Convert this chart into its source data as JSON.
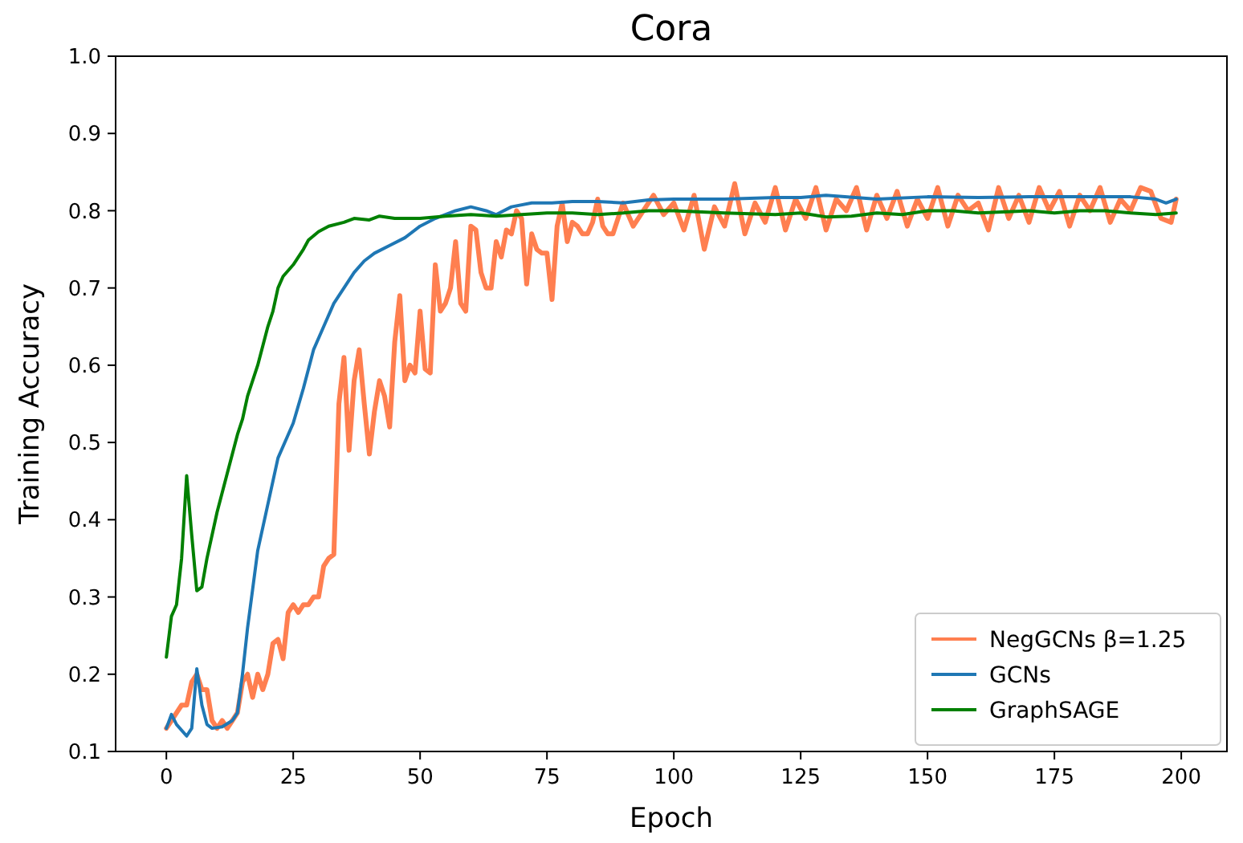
{
  "chart_data": {
    "type": "line",
    "title": "Cora",
    "xlabel": "Epoch",
    "ylabel": "Training Accuracy",
    "xlim": [
      -10,
      209
    ],
    "ylim": [
      0.1,
      1.0
    ],
    "xticks": [
      0,
      25,
      50,
      75,
      100,
      125,
      150,
      175,
      200
    ],
    "yticks": [
      0.1,
      0.2,
      0.3,
      0.4,
      0.5,
      0.6,
      0.7,
      0.8,
      0.9,
      {
        "value": 1,
        "label": "1.0"
      }
    ],
    "legend": "bottom right",
    "grid": false,
    "line_style": "solid",
    "series": [
      {
        "name": "NegGCNs β=1.25",
        "color": "#ff7f50",
        "x": [
          0,
          1,
          2,
          3,
          4,
          5,
          6,
          7,
          8,
          9,
          10,
          11,
          12,
          13,
          14,
          15,
          16,
          17,
          18,
          19,
          20,
          21,
          22,
          23,
          24,
          25,
          26,
          27,
          28,
          29,
          30,
          31,
          32,
          33,
          34,
          35,
          36,
          37,
          38,
          39,
          40,
          41,
          42,
          43,
          44,
          45,
          46,
          47,
          48,
          49,
          50,
          51,
          52,
          53,
          54,
          55,
          56,
          57,
          58,
          59,
          60,
          61,
          62,
          63,
          64,
          65,
          66,
          67,
          68,
          69,
          70,
          71,
          72,
          73,
          74,
          75,
          76,
          77,
          78,
          79,
          80,
          81,
          82,
          83,
          84,
          85,
          86,
          87,
          88,
          89,
          90,
          92,
          94,
          96,
          98,
          100,
          102,
          104,
          106,
          108,
          110,
          112,
          114,
          116,
          118,
          120,
          122,
          124,
          126,
          128,
          130,
          132,
          134,
          136,
          138,
          140,
          142,
          144,
          146,
          148,
          150,
          152,
          154,
          156,
          158,
          160,
          162,
          164,
          166,
          168,
          170,
          172,
          174,
          176,
          178,
          180,
          182,
          184,
          186,
          188,
          190,
          192,
          194,
          196,
          198,
          199
        ],
        "values": [
          0.13,
          0.14,
          0.15,
          0.16,
          0.16,
          0.19,
          0.2,
          0.18,
          0.18,
          0.14,
          0.13,
          0.14,
          0.13,
          0.14,
          0.15,
          0.19,
          0.2,
          0.17,
          0.2,
          0.18,
          0.2,
          0.24,
          0.245,
          0.22,
          0.28,
          0.29,
          0.28,
          0.29,
          0.29,
          0.3,
          0.3,
          0.34,
          0.35,
          0.355,
          0.55,
          0.61,
          0.49,
          0.58,
          0.62,
          0.55,
          0.485,
          0.54,
          0.58,
          0.56,
          0.52,
          0.63,
          0.69,
          0.58,
          0.6,
          0.59,
          0.67,
          0.595,
          0.59,
          0.73,
          0.67,
          0.68,
          0.7,
          0.76,
          0.68,
          0.67,
          0.78,
          0.775,
          0.72,
          0.7,
          0.7,
          0.76,
          0.74,
          0.775,
          0.77,
          0.8,
          0.79,
          0.705,
          0.77,
          0.75,
          0.745,
          0.745,
          0.685,
          0.78,
          0.81,
          0.76,
          0.785,
          0.78,
          0.77,
          0.77,
          0.785,
          0.815,
          0.78,
          0.77,
          0.77,
          0.79,
          0.81,
          0.78,
          0.8,
          0.82,
          0.795,
          0.81,
          0.775,
          0.82,
          0.75,
          0.805,
          0.78,
          0.835,
          0.77,
          0.81,
          0.785,
          0.83,
          0.775,
          0.815,
          0.79,
          0.83,
          0.775,
          0.815,
          0.8,
          0.83,
          0.775,
          0.82,
          0.79,
          0.825,
          0.78,
          0.815,
          0.79,
          0.83,
          0.78,
          0.82,
          0.8,
          0.81,
          0.775,
          0.83,
          0.79,
          0.82,
          0.785,
          0.83,
          0.8,
          0.825,
          0.78,
          0.82,
          0.8,
          0.83,
          0.785,
          0.815,
          0.8,
          0.83,
          0.825,
          0.79,
          0.785,
          0.815
        ]
      },
      {
        "name": "GCNs",
        "color": "#1f77b4",
        "x": [
          0,
          1,
          2,
          4,
          5,
          6,
          7,
          8,
          9,
          11,
          13,
          14,
          15,
          16,
          17,
          18,
          20,
          22,
          24,
          25,
          27,
          29,
          31,
          33,
          35,
          37,
          39,
          41,
          44,
          47,
          50,
          53,
          57,
          60,
          63,
          65,
          68,
          72,
          76,
          80,
          85,
          90,
          95,
          100,
          110,
          120,
          125,
          130,
          140,
          150,
          160,
          170,
          180,
          190,
          195,
          197,
          199
        ],
        "values": [
          0.13,
          0.148,
          0.135,
          0.12,
          0.13,
          0.207,
          0.16,
          0.135,
          0.13,
          0.132,
          0.14,
          0.15,
          0.2,
          0.26,
          0.31,
          0.36,
          0.42,
          0.48,
          0.51,
          0.525,
          0.57,
          0.62,
          0.65,
          0.68,
          0.7,
          0.72,
          0.735,
          0.745,
          0.755,
          0.765,
          0.78,
          0.79,
          0.8,
          0.805,
          0.8,
          0.795,
          0.805,
          0.81,
          0.81,
          0.812,
          0.812,
          0.81,
          0.814,
          0.815,
          0.815,
          0.817,
          0.817,
          0.82,
          0.815,
          0.818,
          0.817,
          0.818,
          0.818,
          0.818,
          0.815,
          0.81,
          0.815
        ]
      },
      {
        "name": "GraphSAGE",
        "color": "#008000",
        "x": [
          0,
          1,
          2,
          3,
          4,
          5,
          6,
          7,
          8,
          10,
          12,
          14,
          15,
          16,
          18,
          20,
          21,
          22,
          23,
          25,
          27,
          28,
          30,
          32,
          35,
          37,
          40,
          42,
          45,
          50,
          55,
          60,
          65,
          70,
          75,
          80,
          85,
          90,
          95,
          100,
          110,
          120,
          125,
          130,
          135,
          140,
          145,
          150,
          155,
          160,
          170,
          175,
          180,
          185,
          190,
          195,
          199
        ],
        "values": [
          0.222,
          0.275,
          0.29,
          0.35,
          0.457,
          0.38,
          0.308,
          0.313,
          0.35,
          0.41,
          0.46,
          0.51,
          0.53,
          0.56,
          0.6,
          0.65,
          0.67,
          0.7,
          0.715,
          0.73,
          0.75,
          0.762,
          0.773,
          0.78,
          0.785,
          0.79,
          0.788,
          0.793,
          0.79,
          0.79,
          0.793,
          0.795,
          0.793,
          0.795,
          0.797,
          0.797,
          0.795,
          0.797,
          0.8,
          0.8,
          0.797,
          0.795,
          0.797,
          0.792,
          0.793,
          0.797,
          0.795,
          0.8,
          0.8,
          0.797,
          0.8,
          0.797,
          0.8,
          0.8,
          0.797,
          0.795,
          0.797
        ]
      }
    ]
  }
}
